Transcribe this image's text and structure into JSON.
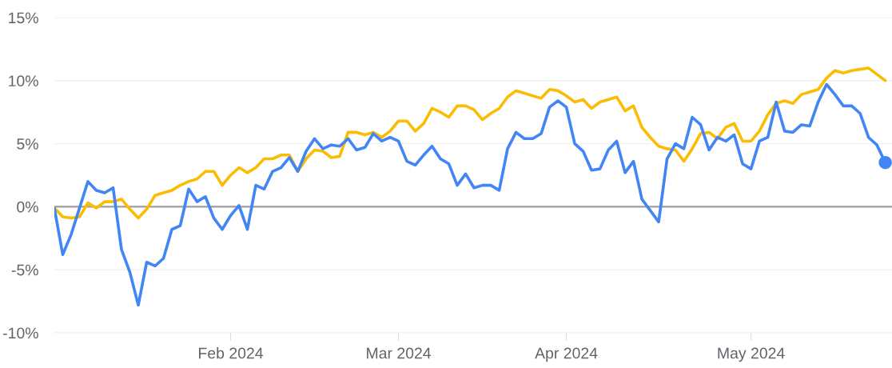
{
  "chart_data": {
    "type": "line",
    "categories": [
      null,
      null,
      null,
      null,
      null,
      null,
      null,
      null,
      null,
      null,
      null,
      null,
      null,
      null,
      null,
      null,
      null,
      null,
      null,
      null,
      null,
      "Feb 2024",
      null,
      null,
      null,
      null,
      null,
      null,
      null,
      null,
      null,
      null,
      null,
      null,
      null,
      null,
      null,
      null,
      null,
      null,
      null,
      "Mar 2024",
      null,
      null,
      null,
      null,
      null,
      null,
      null,
      null,
      null,
      null,
      null,
      null,
      null,
      null,
      null,
      null,
      null,
      null,
      null,
      "Apr 2024",
      null,
      null,
      null,
      null,
      null,
      null,
      null,
      null,
      null,
      null,
      null,
      null,
      null,
      null,
      null,
      null,
      null,
      null,
      null,
      null,
      null,
      "May 2024",
      null,
      null,
      null,
      null,
      null,
      null,
      null,
      null,
      null,
      null,
      null,
      null,
      null,
      null,
      null,
      null
    ],
    "ylim": [
      -10,
      15
    ],
    "yticks": [
      {
        "value": -10,
        "label": "-10%"
      },
      {
        "value": -5,
        "label": "-5%"
      },
      {
        "value": 0,
        "label": "0%"
      },
      {
        "value": 5,
        "label": "5%"
      },
      {
        "value": 10,
        "label": "10%"
      },
      {
        "value": 15,
        "label": "15%"
      }
    ],
    "grid": "y",
    "legend": false,
    "line_style": "solid",
    "ref_lines": [
      {
        "axis": "y",
        "value": 0,
        "color": "#9e9e9e"
      }
    ],
    "series": [
      {
        "color": "#fbbc04",
        "marker": "none",
        "values": [
          -0.1,
          -0.8,
          -0.9,
          -0.8,
          0.3,
          -0.1,
          0.4,
          0.4,
          0.6,
          -0.2,
          -0.9,
          -0.2,
          0.9,
          1.1,
          1.3,
          1.7,
          2.0,
          2.2,
          2.8,
          2.8,
          1.7,
          2.5,
          3.1,
          2.7,
          3.1,
          3.8,
          3.8,
          4.1,
          4.1,
          2.8,
          3.8,
          4.5,
          4.4,
          3.9,
          4.0,
          5.9,
          5.9,
          5.7,
          5.9,
          5.5,
          6.0,
          6.8,
          6.8,
          6.0,
          6.6,
          7.8,
          7.5,
          7.1,
          8.0,
          8.0,
          7.7,
          6.9,
          7.4,
          7.8,
          8.7,
          9.2,
          9.0,
          8.8,
          8.6,
          9.3,
          9.2,
          8.8,
          8.3,
          8.5,
          7.8,
          8.3,
          8.5,
          8.7,
          7.6,
          8.0,
          6.3,
          5.5,
          4.8,
          4.6,
          4.5,
          3.6,
          4.6,
          5.8,
          5.9,
          5.4,
          6.3,
          6.6,
          5.2,
          5.2,
          6.0,
          7.3,
          8.2,
          8.4,
          8.2,
          8.9,
          9.1,
          9.3,
          10.2,
          10.8,
          10.6,
          10.8,
          10.9,
          11.0,
          10.5,
          10.0
        ]
      },
      {
        "color": "#4285f4",
        "marker": "none",
        "values": [
          -0.1,
          -3.8,
          -2.2,
          -0.1,
          2.0,
          1.3,
          1.1,
          1.5,
          -3.4,
          -5.2,
          -7.8,
          -4.4,
          -4.7,
          -4.1,
          -1.8,
          -1.5,
          1.4,
          0.4,
          0.8,
          -0.9,
          -1.8,
          -0.7,
          0.1,
          -1.8,
          1.7,
          1.4,
          2.8,
          3.1,
          3.9,
          2.8,
          4.4,
          5.4,
          4.6,
          4.9,
          4.8,
          5.4,
          4.5,
          4.7,
          5.8,
          5.2,
          5.5,
          5.2,
          3.6,
          3.3,
          4.1,
          4.8,
          3.8,
          3.4,
          1.7,
          2.6,
          1.5,
          1.7,
          1.7,
          1.3,
          4.6,
          5.9,
          5.4,
          5.4,
          5.8,
          7.9,
          8.4,
          7.9,
          5.0,
          4.4,
          2.9,
          3.0,
          4.5,
          5.2,
          2.7,
          3.6,
          0.6,
          -0.3,
          -1.2,
          3.8,
          5.0,
          4.6,
          7.1,
          6.5,
          4.5,
          5.5,
          5.2,
          5.7,
          3.4,
          3.0,
          5.2,
          5.5,
          8.3,
          6.0,
          5.9,
          6.5,
          6.4,
          8.3,
          9.7,
          8.9,
          8.0,
          8.0,
          7.4,
          5.5,
          4.9,
          3.5
        ]
      },
      {
        "type": "scatter",
        "color": "#4285f4",
        "marker": "circle",
        "values": [
          null,
          null,
          null,
          null,
          null,
          null,
          null,
          null,
          null,
          null,
          null,
          null,
          null,
          null,
          null,
          null,
          null,
          null,
          null,
          null,
          null,
          null,
          null,
          null,
          null,
          null,
          null,
          null,
          null,
          null,
          null,
          null,
          null,
          null,
          null,
          null,
          null,
          null,
          null,
          null,
          null,
          null,
          null,
          null,
          null,
          null,
          null,
          null,
          null,
          null,
          null,
          null,
          null,
          null,
          null,
          null,
          null,
          null,
          null,
          null,
          null,
          null,
          null,
          null,
          null,
          null,
          null,
          null,
          null,
          null,
          null,
          null,
          null,
          null,
          null,
          null,
          null,
          null,
          null,
          null,
          null,
          null,
          null,
          null,
          null,
          null,
          null,
          null,
          null,
          null,
          null,
          null,
          null,
          null,
          null,
          null,
          null,
          null,
          null,
          3.5
        ]
      }
    ]
  }
}
